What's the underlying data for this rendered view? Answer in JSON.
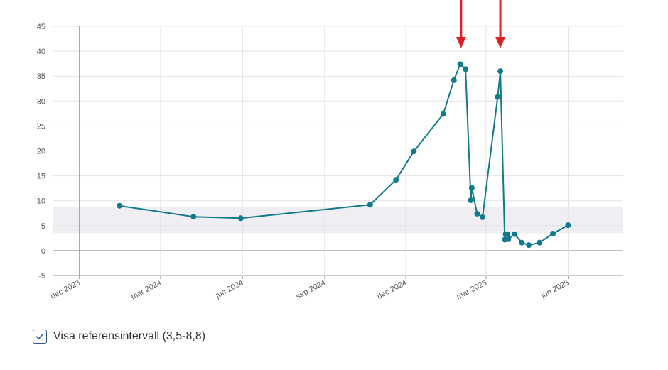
{
  "colors": {
    "line": "#127a8a",
    "marker": "#127a8a",
    "reference_band": "#eeeef3",
    "grid": "#e3e3e3",
    "axis": "#9a9a9a",
    "arrow": "#dd2121",
    "checkbox_border": "#2a5a8f"
  },
  "chart_data": {
    "type": "line",
    "title": "",
    "xlabel": "",
    "ylabel": "",
    "ylim": [
      -5,
      45
    ],
    "yticks": [
      "-5",
      "0",
      "5",
      "10",
      "15",
      "20",
      "25",
      "30",
      "35",
      "40",
      "45"
    ],
    "xlim": [
      "2023-11-01",
      "2025-08-01"
    ],
    "xticks": [
      {
        "date": "2023-12-01",
        "label": "dec 2023"
      },
      {
        "date": "2024-03-01",
        "label": "mar 2024"
      },
      {
        "date": "2024-06-01",
        "label": "jun 2024"
      },
      {
        "date": "2024-09-01",
        "label": "sep 2024"
      },
      {
        "date": "2024-12-01",
        "label": "dec 2024"
      },
      {
        "date": "2025-03-01",
        "label": "mar 2025"
      },
      {
        "date": "2025-06-01",
        "label": "jun 2025"
      }
    ],
    "grid": true,
    "reference_band": [
      3.5,
      8.8
    ],
    "series": [
      {
        "points": [
          {
            "x": "2024-01-15",
            "y": 9.0
          },
          {
            "x": "2024-04-07",
            "y": 6.8
          },
          {
            "x": "2024-05-30",
            "y": 6.5
          },
          {
            "x": "2024-10-22",
            "y": 9.2
          },
          {
            "x": "2024-11-20",
            "y": 14.2
          },
          {
            "x": "2024-12-10",
            "y": 19.9
          },
          {
            "x": "2025-01-12",
            "y": 27.4
          },
          {
            "x": "2025-01-24",
            "y": 34.2
          },
          {
            "x": "2025-01-31",
            "y": 37.4
          },
          {
            "x": "2025-02-06",
            "y": 36.4
          },
          {
            "x": "2025-02-12",
            "y": 10.1
          },
          {
            "x": "2025-02-13",
            "y": 12.6
          },
          {
            "x": "2025-02-19",
            "y": 7.4
          },
          {
            "x": "2025-02-25",
            "y": 6.7
          },
          {
            "x": "2025-03-14",
            "y": 30.8
          },
          {
            "x": "2025-03-17",
            "y": 36.0
          },
          {
            "x": "2025-03-22",
            "y": 2.2
          },
          {
            "x": "2025-03-23",
            "y": 3.3
          },
          {
            "x": "2025-03-25",
            "y": 3.3
          },
          {
            "x": "2025-03-26",
            "y": 2.3
          },
          {
            "x": "2025-04-02",
            "y": 3.3
          },
          {
            "x": "2025-04-10",
            "y": 1.6
          },
          {
            "x": "2025-04-18",
            "y": 1.1
          },
          {
            "x": "2025-04-30",
            "y": 1.6
          },
          {
            "x": "2025-05-15",
            "y": 3.4
          },
          {
            "x": "2025-06-01",
            "y": 5.1
          }
        ]
      }
    ],
    "annotations": [
      {
        "type": "arrow",
        "x": "2025-02-01"
      },
      {
        "type": "arrow",
        "x": "2025-03-17"
      }
    ]
  },
  "reference_toggle": {
    "checked": true,
    "label": "Visa referensintervall (3,5-8,8)"
  }
}
